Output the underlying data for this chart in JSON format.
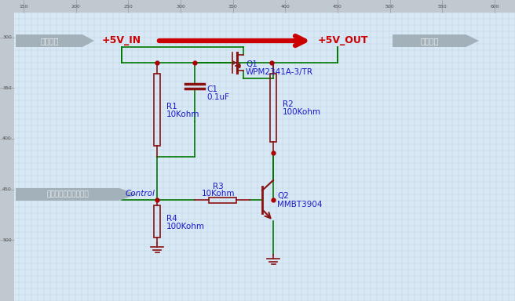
{
  "bg_color": "#d8e8f5",
  "grid_color": "#b8cce0",
  "wire_color": "#007700",
  "power_color": "#cc0000",
  "label_color": "#1a1acc",
  "dot_color": "#aa0000",
  "comp_color": "#8b1010",
  "title_bg": "#b0b8c0",
  "title_text": "#e8e8e8",
  "ruler_bg": "#c0c8d0",
  "ruler_text": "#505050",
  "ruler_numbers": [
    150,
    200,
    250,
    300,
    350,
    400,
    450,
    500,
    550,
    600
  ],
  "ruler_y_numbers": [
    300,
    350,
    400,
    450,
    500
  ],
  "label_5V_IN": "+5V_IN",
  "label_5V_OUT": "+5V_OUT",
  "label_power_in": "电源输入",
  "label_power_out": "电源输出",
  "label_control_block": "输入信号控制电源开关",
  "label_control": "Control",
  "label_Q1": "Q1",
  "label_Q1_part": "WPM2341A-3/TR",
  "label_Q2": "Q2",
  "label_Q2_part": "MMBT3904",
  "label_C1": "C1",
  "label_C1_val": "0.1uF",
  "label_R1": "R1",
  "label_R1_val": "10Kohm",
  "label_R2": "R2",
  "label_R2_val": "100Kohm",
  "label_R3": "R3",
  "label_R3_val": "10Kohm",
  "label_R4": "R4",
  "label_R4_val": "100Kohm"
}
